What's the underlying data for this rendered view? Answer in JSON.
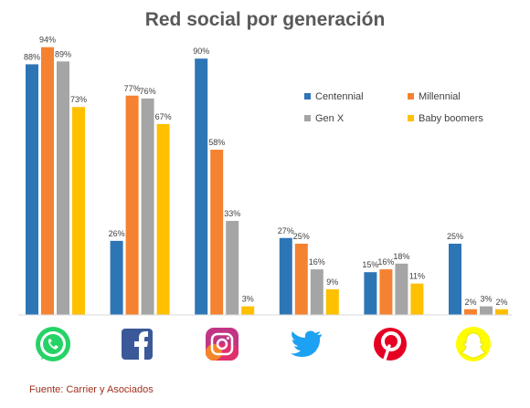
{
  "chart_data": {
    "type": "bar",
    "title": "Red social por generación",
    "categories": [
      "WhatsApp",
      "Facebook",
      "Instagram",
      "Twitter",
      "Pinterest",
      "Snapchat"
    ],
    "category_icons": [
      "whatsapp-icon",
      "facebook-icon",
      "instagram-icon",
      "twitter-icon",
      "pinterest-icon",
      "snapchat-icon"
    ],
    "series": [
      {
        "name": "Centennial",
        "color": "#2e75b6",
        "values": [
          88,
          26,
          90,
          27,
          15,
          25
        ]
      },
      {
        "name": "Millennial",
        "color": "#f58230",
        "values": [
          94,
          77,
          58,
          25,
          16,
          2
        ]
      },
      {
        "name": "Gen X",
        "color": "#a5a5a5",
        "values": [
          89,
          76,
          33,
          16,
          18,
          3
        ]
      },
      {
        "name": "Baby boomers",
        "color": "#ffc000",
        "values": [
          73,
          67,
          3,
          9,
          11,
          2
        ]
      }
    ],
    "value_suffix": "%",
    "ylim": [
      0,
      100
    ],
    "grid": false,
    "legend_position": "top-right",
    "source": "Fuente: Carrier y Asociados"
  }
}
